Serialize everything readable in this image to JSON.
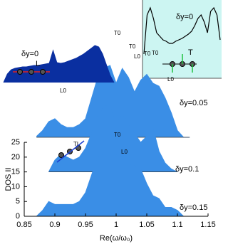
{
  "chart_data": [
    {
      "type": "area",
      "x_label": "Re(ω/ω₀)",
      "y_label": "DOS II",
      "x": [
        0.85,
        0.86,
        0.87,
        0.88,
        0.89,
        0.9,
        0.91,
        0.92,
        0.93,
        0.94,
        0.95,
        0.96,
        0.97,
        0.98,
        0.99,
        1.0,
        1.01,
        1.02,
        1.03,
        1.04,
        1.05,
        1.06,
        1.07,
        1.08,
        1.09,
        1.1,
        1.11,
        1.12,
        1.13,
        1.14,
        1.15
      ],
      "xlim": [
        0.85,
        1.15
      ],
      "xticks": [
        0.85,
        0.9,
        0.95,
        1,
        1.05,
        1.1,
        1.15
      ],
      "ylim": [
        0,
        70
      ],
      "yticks": [
        0,
        5,
        10,
        15,
        20,
        25
      ],
      "series": [
        {
          "name": "δy=0.05",
          "color": "#3a8ee6",
          "values": [
            null,
            null,
            27,
            29,
            32,
            33,
            31,
            30,
            30,
            31,
            33,
            40,
            47,
            50,
            51,
            45,
            50,
            47,
            42,
            46,
            48,
            45,
            44,
            40,
            35,
            29,
            26.7,
            26.7,
            null,
            null,
            null
          ]
        },
        {
          "name": "δy=0.1",
          "color": "#3a8ee6",
          "values": [
            null,
            null,
            null,
            null,
            15,
            19,
            21,
            20,
            19,
            20,
            23,
            28,
            34,
            37,
            38,
            31,
            35,
            31,
            28,
            25,
            27,
            30,
            22,
            18,
            16,
            15,
            null,
            null,
            null,
            null,
            null
          ]
        },
        {
          "name": "δy=0.15",
          "color": "#3a8ee6",
          "values": [
            0,
            0,
            0,
            2,
            5,
            4,
            4,
            4,
            4,
            5,
            8,
            14,
            20,
            21,
            21,
            21,
            19,
            18,
            17,
            16,
            11,
            7,
            6,
            3,
            3,
            2,
            0,
            0,
            0,
            0,
            0
          ]
        }
      ],
      "annotations": [
        "T0",
        "T0",
        "L0",
        "T0",
        "T0",
        "L0",
        "L0",
        "T0",
        "L0",
        "TL"
      ]
    },
    {
      "type": "area",
      "title": "δy=0",
      "color": "#0a2fa0",
      "annotation": "L",
      "values": [
        0,
        12,
        18,
        20,
        21,
        22,
        22,
        23,
        24,
        24,
        25,
        26,
        27,
        45,
        28,
        27,
        28,
        30,
        32,
        34,
        37,
        40,
        44,
        48,
        52,
        50,
        40,
        25,
        10,
        0
      ]
    },
    {
      "type": "line",
      "title": "δy=0",
      "color": "#000000",
      "annotation": "T",
      "values": [
        30,
        85,
        95,
        80,
        60,
        55,
        50,
        48,
        45,
        45,
        48,
        50,
        52,
        55,
        58,
        62,
        70,
        80,
        85,
        75,
        60,
        90,
        95,
        85,
        50
      ]
    }
  ]
}
